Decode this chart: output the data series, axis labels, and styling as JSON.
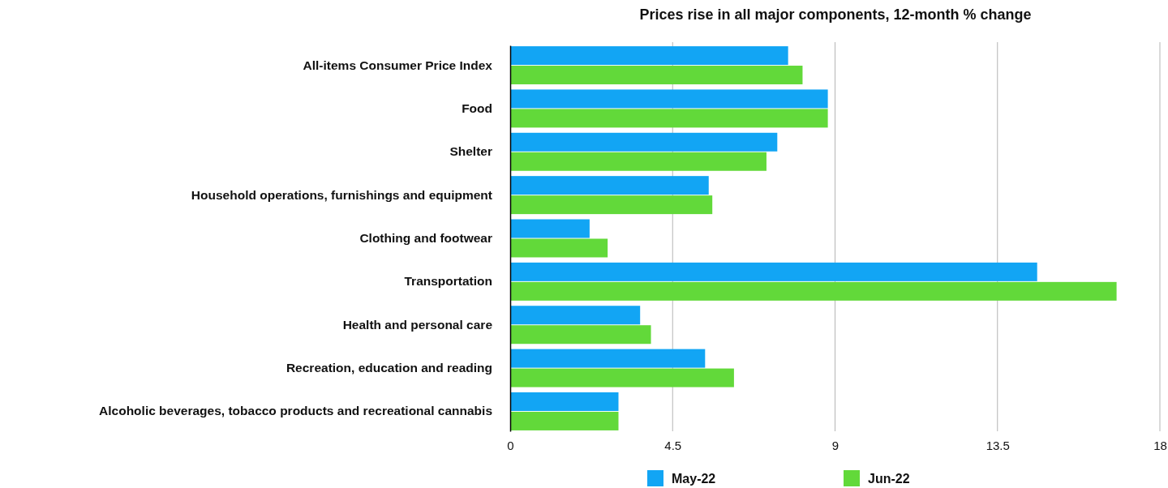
{
  "chart_data": {
    "type": "bar",
    "orientation": "horizontal",
    "title": "Prices rise in all major components, 12-month % change",
    "categories": [
      "All-items Consumer Price Index",
      "Food",
      "Shelter",
      "Household operations, furnishings and equipment",
      "Clothing and footwear",
      "Transportation",
      "Health and personal care",
      "Recreation, education and reading",
      "Alcoholic beverages, tobacco products and recreational cannabis"
    ],
    "series": [
      {
        "name": "May-22",
        "color": "#12a5f4",
        "values": [
          7.7,
          8.8,
          7.4,
          5.5,
          2.2,
          14.6,
          3.6,
          5.4,
          3.0
        ]
      },
      {
        "name": "Jun-22",
        "color": "#62d93a",
        "values": [
          8.1,
          8.8,
          7.1,
          5.6,
          2.7,
          16.8,
          3.9,
          6.2,
          3.0
        ]
      }
    ],
    "xlim": [
      0,
      18
    ],
    "xticks": [
      0,
      4.5,
      9,
      13.5,
      18
    ],
    "grid": "x",
    "legend": "bottom"
  }
}
